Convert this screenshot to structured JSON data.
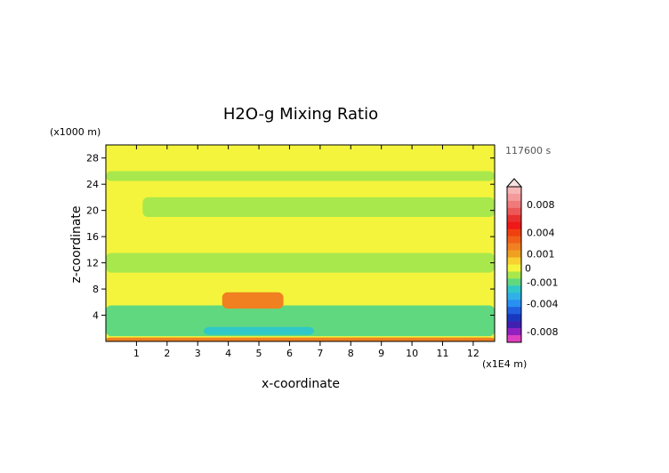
{
  "chart_data": {
    "type": "heatmap",
    "title": "H2O-g Mixing Ratio",
    "xlabel": "x-coordinate",
    "ylabel": "z-coordinate",
    "x_unit": "(x1E4 m)",
    "y_unit": "(x1000 m)",
    "time_label": "117600 s",
    "xlim": [
      0,
      12.7
    ],
    "ylim": [
      0,
      30
    ],
    "xticks": [
      "1",
      "2",
      "3",
      "4",
      "5",
      "6",
      "7",
      "8",
      "9",
      "10",
      "11",
      "12"
    ],
    "yticks": [
      "4",
      "8",
      "12",
      "16",
      "20",
      "24",
      "28"
    ],
    "colorbar": {
      "labels": [
        "0.008",
        "0.004",
        "0.001",
        "0",
        "-0.001",
        "-0.004",
        "-0.008"
      ],
      "levels": [
        0.01,
        0.009,
        0.008,
        0.007,
        0.006,
        0.005,
        0.004,
        0.003,
        0.002,
        0.001,
        0.0005,
        0,
        -0.0005,
        -0.001,
        -0.002,
        -0.003,
        -0.004,
        -0.005,
        -0.006,
        -0.007,
        -0.008,
        -0.009
      ],
      "colors": [
        "#f7b6b6",
        "#f49a9a",
        "#f07a7a",
        "#ec5858",
        "#e83030",
        "#f01818",
        "#f04010",
        "#f06018",
        "#f08020",
        "#f0a020",
        "#f8d030",
        "#f4f43c",
        "#a8e84c",
        "#60d880",
        "#30c8c8",
        "#30b0e8",
        "#2890f0",
        "#2060e0",
        "#1838c0",
        "#4020b0",
        "#9020c0",
        "#e040c0"
      ]
    },
    "field_regions": [
      {
        "level": 0,
        "x": [
          0,
          12.7
        ],
        "z": [
          0,
          30
        ],
        "label": "background"
      },
      {
        "level": -0.0005,
        "x": [
          0,
          12.7
        ],
        "z": [
          10.5,
          13.5
        ]
      },
      {
        "level": -0.0005,
        "x": [
          1.2,
          12.7
        ],
        "z": [
          19,
          22
        ]
      },
      {
        "level": -0.0005,
        "x": [
          0,
          12.7
        ],
        "z": [
          24.5,
          26
        ]
      },
      {
        "level": -0.001,
        "x": [
          0,
          12.7
        ],
        "z": [
          0.8,
          5.5
        ]
      },
      {
        "level": -0.002,
        "x": [
          3.2,
          6.8
        ],
        "z": [
          1,
          2.2
        ]
      },
      {
        "level": 0.002,
        "x": [
          3.8,
          5.8
        ],
        "z": [
          5,
          7.5
        ]
      },
      {
        "level": 0.002,
        "x": [
          0,
          12.7
        ],
        "z": [
          0,
          0.6
        ]
      }
    ]
  }
}
